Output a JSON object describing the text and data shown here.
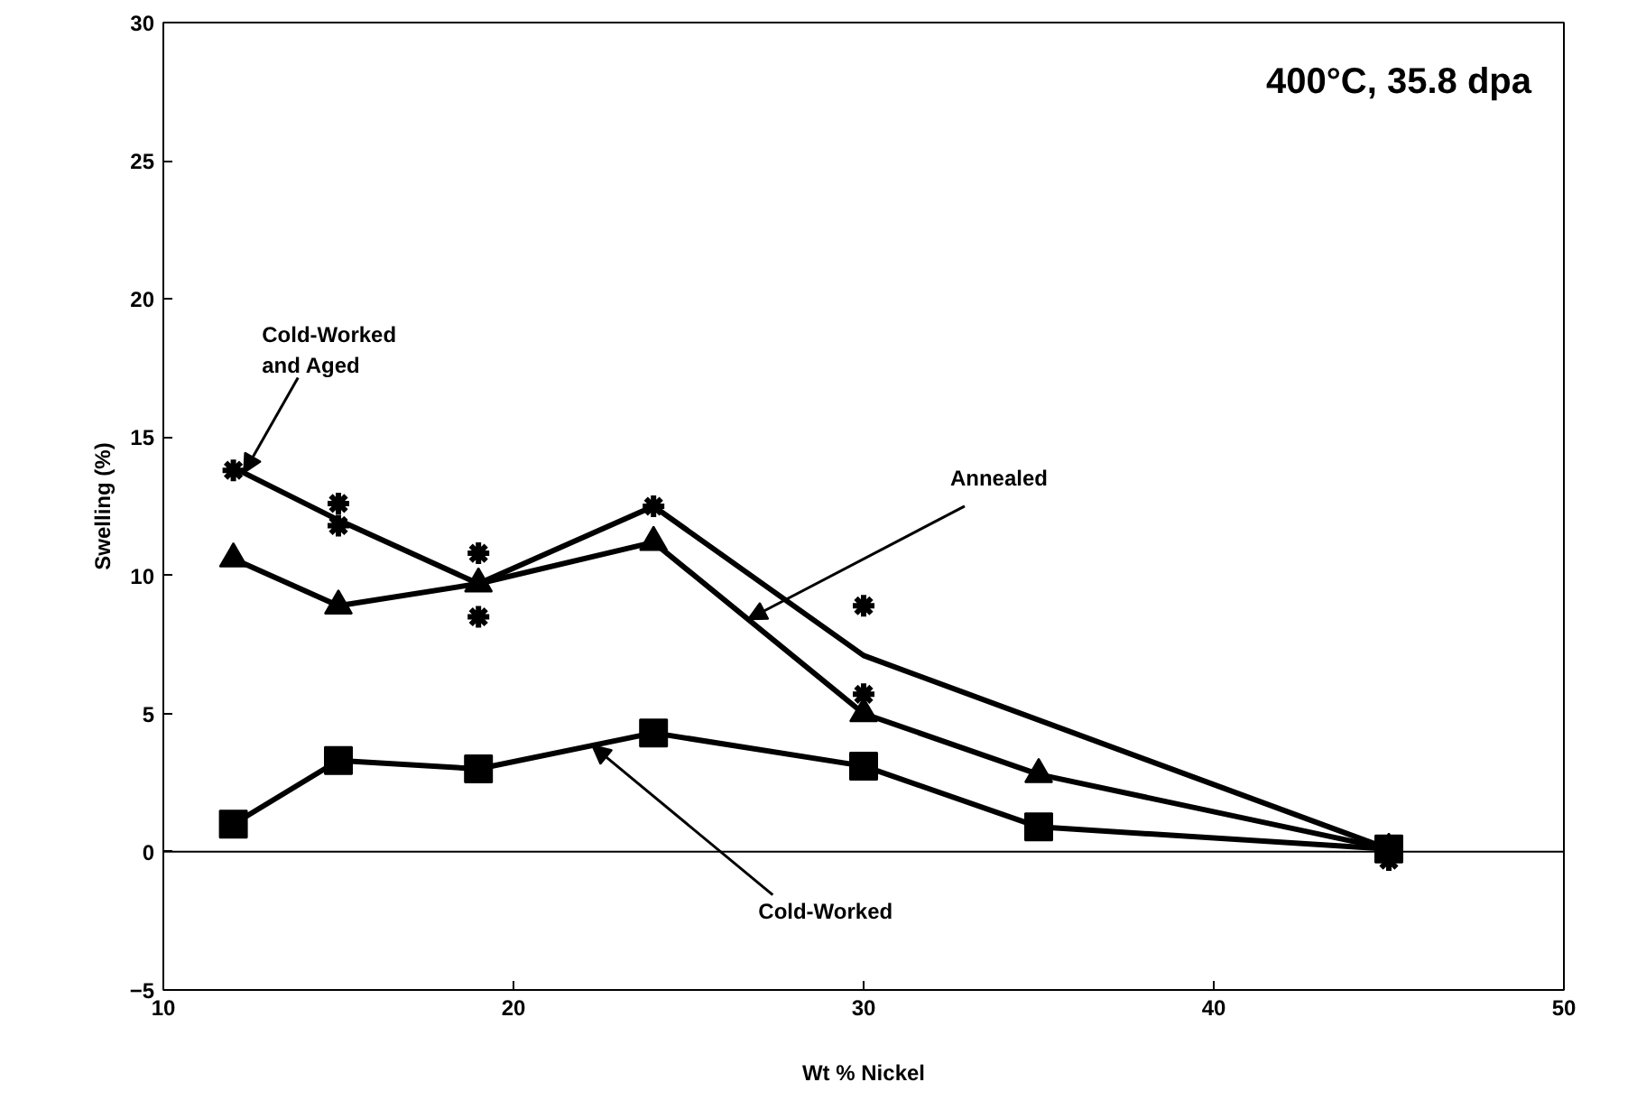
{
  "chart_data": {
    "type": "line",
    "xlabel": "Wt % Nickel",
    "ylabel": "Swelling (%)",
    "annotations": [
      "400°C, 35.8 dpa"
    ],
    "xlim": [
      10,
      50
    ],
    "ylim": [
      -5,
      30
    ],
    "xticks": [
      10,
      20,
      30,
      40,
      50
    ],
    "yticks": [
      -5,
      0,
      5,
      10,
      15,
      20,
      25,
      30
    ],
    "grid": false,
    "ref_lines": [
      {
        "axis": "y",
        "value": 0,
        "label": null,
        "color": "#000000"
      }
    ],
    "series": [
      {
        "name": "Cold-Worked and Aged",
        "color": "#000000",
        "marker": "none",
        "x": [
          12,
          15,
          19,
          24,
          30,
          45
        ],
        "values": [
          13.9,
          12.0,
          9.7,
          12.5,
          7.1,
          0.1
        ]
      },
      {
        "type": "scatter",
        "color": "#000000",
        "marker": "cross",
        "x": [
          12,
          15,
          15,
          19,
          19,
          24,
          30,
          30,
          45
        ],
        "values": [
          13.8,
          12.6,
          11.8,
          10.8,
          8.5,
          12.5,
          8.9,
          5.7,
          -0.3
        ]
      },
      {
        "name": "Annealed",
        "color": "#000000",
        "marker": "triangle",
        "x": [
          12,
          15,
          19,
          24,
          30,
          35,
          45
        ],
        "values": [
          10.6,
          8.9,
          9.7,
          11.2,
          5.0,
          2.8,
          0.1
        ]
      },
      {
        "name": "Cold-Worked",
        "color": "#000000",
        "marker": "square",
        "x": [
          12,
          15,
          19,
          24,
          30,
          35,
          45
        ],
        "values": [
          1.0,
          3.3,
          3.0,
          4.3,
          3.1,
          0.9,
          0.1
        ]
      }
    ]
  }
}
